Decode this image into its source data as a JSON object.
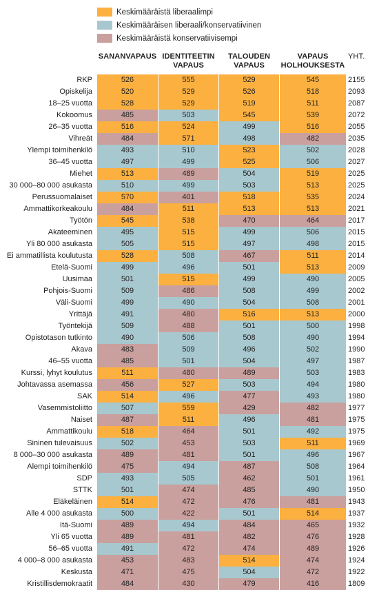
{
  "legend": [
    {
      "label": "Keskimääräistä liberaalimpi",
      "color": "#fbb040"
    },
    {
      "label": "Keskimääräisen liberaali/konservatiivinen",
      "color": "#a8c8cf"
    },
    {
      "label": "Keskimääräistä konservatiivisempi",
      "color": "#c9a09e"
    }
  ],
  "columns": [
    "SANANVAPAUS",
    "IDENTITEETIN\nVAPAUS",
    "TALOUDEN\nVAPAUS",
    "VAPAUS\nHOLHOUKSESTA"
  ],
  "total_label": "YHT.",
  "chart_data": {
    "type": "table",
    "color_key": {
      "L": "Keskimääräistä liberaalimpi",
      "N": "Keskimääräisen liberaali/konservatiivinen",
      "K": "Keskimääräistä konservatiivisempi"
    },
    "rows": [
      {
        "label": "RKP",
        "values": [
          526,
          555,
          529,
          545
        ],
        "cats": [
          "L",
          "L",
          "L",
          "L"
        ],
        "total": 2155
      },
      {
        "label": "Opiskelija",
        "values": [
          520,
          529,
          526,
          518
        ],
        "cats": [
          "L",
          "L",
          "L",
          "L"
        ],
        "total": 2093
      },
      {
        "label": "18–25 vuotta",
        "values": [
          528,
          529,
          519,
          511
        ],
        "cats": [
          "L",
          "L",
          "L",
          "L"
        ],
        "total": 2087
      },
      {
        "label": "Kokoomus",
        "values": [
          485,
          503,
          545,
          539
        ],
        "cats": [
          "K",
          "N",
          "L",
          "L"
        ],
        "total": 2072
      },
      {
        "label": "26–35 vuotta",
        "values": [
          516,
          524,
          499,
          516
        ],
        "cats": [
          "L",
          "L",
          "N",
          "L"
        ],
        "total": 2055
      },
      {
        "label": "Vihreät",
        "values": [
          484,
          571,
          498,
          482
        ],
        "cats": [
          "K",
          "L",
          "N",
          "K"
        ],
        "total": 2035
      },
      {
        "label": "Ylempi toimihenkilö",
        "values": [
          493,
          510,
          523,
          502
        ],
        "cats": [
          "N",
          "N",
          "L",
          "N"
        ],
        "total": 2028
      },
      {
        "label": "36–45 vuotta",
        "values": [
          497,
          499,
          525,
          506
        ],
        "cats": [
          "N",
          "N",
          "L",
          "N"
        ],
        "total": 2027
      },
      {
        "label": "Miehet",
        "values": [
          513,
          489,
          504,
          519
        ],
        "cats": [
          "L",
          "K",
          "N",
          "L"
        ],
        "total": 2025
      },
      {
        "label": "30 000–80 000 asukasta",
        "values": [
          510,
          499,
          503,
          513
        ],
        "cats": [
          "N",
          "N",
          "N",
          "L"
        ],
        "total": 2025
      },
      {
        "label": "Perussuomalaiset",
        "values": [
          570,
          401,
          518,
          535
        ],
        "cats": [
          "L",
          "K",
          "L",
          "L"
        ],
        "total": 2024
      },
      {
        "label": "Ammattikorkeakoulu",
        "values": [
          484,
          511,
          513,
          513
        ],
        "cats": [
          "K",
          "L",
          "L",
          "L"
        ],
        "total": 2021
      },
      {
        "label": "Työtön",
        "values": [
          545,
          538,
          470,
          464
        ],
        "cats": [
          "L",
          "L",
          "K",
          "K"
        ],
        "total": 2017
      },
      {
        "label": "Akateeminen",
        "values": [
          495,
          515,
          499,
          506
        ],
        "cats": [
          "N",
          "L",
          "N",
          "N"
        ],
        "total": 2015
      },
      {
        "label": "Yli 80 000 asukasta",
        "values": [
          505,
          515,
          497,
          498
        ],
        "cats": [
          "N",
          "L",
          "N",
          "N"
        ],
        "total": 2015
      },
      {
        "label": "Ei ammatillista koulutusta",
        "values": [
          528,
          508,
          467,
          511
        ],
        "cats": [
          "L",
          "N",
          "K",
          "L"
        ],
        "total": 2014
      },
      {
        "label": "Etelä-Suomi",
        "values": [
          499,
          496,
          501,
          513
        ],
        "cats": [
          "N",
          "N",
          "N",
          "L"
        ],
        "total": 2009
      },
      {
        "label": "Uusimaa",
        "values": [
          501,
          515,
          499,
          490
        ],
        "cats": [
          "N",
          "L",
          "N",
          "N"
        ],
        "total": 2005
      },
      {
        "label": "Pohjois-Suomi",
        "values": [
          509,
          486,
          508,
          499
        ],
        "cats": [
          "N",
          "K",
          "N",
          "N"
        ],
        "total": 2002
      },
      {
        "label": "Väli-Suomi",
        "values": [
          499,
          490,
          504,
          508
        ],
        "cats": [
          "N",
          "N",
          "N",
          "N"
        ],
        "total": 2001
      },
      {
        "label": "Yrittäjä",
        "values": [
          491,
          480,
          516,
          513
        ],
        "cats": [
          "N",
          "K",
          "L",
          "L"
        ],
        "total": 2000
      },
      {
        "label": "Työntekijä",
        "values": [
          509,
          488,
          501,
          500
        ],
        "cats": [
          "N",
          "K",
          "N",
          "N"
        ],
        "total": 1998
      },
      {
        "label": "Opistotason tutkinto",
        "values": [
          490,
          506,
          508,
          490
        ],
        "cats": [
          "N",
          "N",
          "N",
          "N"
        ],
        "total": 1994
      },
      {
        "label": "Akava",
        "values": [
          483,
          509,
          496,
          502
        ],
        "cats": [
          "K",
          "N",
          "N",
          "N"
        ],
        "total": 1990
      },
      {
        "label": "46–55 vuotta",
        "values": [
          485,
          501,
          504,
          497
        ],
        "cats": [
          "K",
          "N",
          "N",
          "N"
        ],
        "total": 1987
      },
      {
        "label": "Kurssi, lyhyt koulutus",
        "values": [
          511,
          480,
          489,
          503
        ],
        "cats": [
          "L",
          "K",
          "K",
          "N"
        ],
        "total": 1983
      },
      {
        "label": "Johtavassa asemassa",
        "values": [
          456,
          527,
          503,
          494
        ],
        "cats": [
          "K",
          "L",
          "N",
          "N"
        ],
        "total": 1980
      },
      {
        "label": "SAK",
        "values": [
          514,
          496,
          477,
          493
        ],
        "cats": [
          "L",
          "N",
          "K",
          "N"
        ],
        "total": 1980
      },
      {
        "label": "Vasemmistoliitto",
        "values": [
          507,
          559,
          429,
          482
        ],
        "cats": [
          "N",
          "L",
          "K",
          "K"
        ],
        "total": 1977
      },
      {
        "label": "Naiset",
        "values": [
          487,
          511,
          496,
          481
        ],
        "cats": [
          "K",
          "L",
          "N",
          "K"
        ],
        "total": 1975
      },
      {
        "label": "Ammattikoulu",
        "values": [
          518,
          464,
          501,
          492
        ],
        "cats": [
          "L",
          "K",
          "N",
          "N"
        ],
        "total": 1975
      },
      {
        "label": "Sininen tulevaisuus",
        "values": [
          502,
          453,
          503,
          511
        ],
        "cats": [
          "N",
          "K",
          "N",
          "L"
        ],
        "total": 1969
      },
      {
        "label": "8 000–30 000 asukasta",
        "values": [
          489,
          481,
          501,
          496
        ],
        "cats": [
          "K",
          "K",
          "N",
          "N"
        ],
        "total": 1967
      },
      {
        "label": "Alempi toimihenkilö",
        "values": [
          475,
          494,
          487,
          508
        ],
        "cats": [
          "K",
          "N",
          "K",
          "N"
        ],
        "total": 1964
      },
      {
        "label": "SDP",
        "values": [
          493,
          505,
          462,
          501
        ],
        "cats": [
          "N",
          "N",
          "K",
          "N"
        ],
        "total": 1961
      },
      {
        "label": "STTK",
        "values": [
          501,
          474,
          485,
          490
        ],
        "cats": [
          "N",
          "K",
          "K",
          "N"
        ],
        "total": 1950
      },
      {
        "label": "Eläkeläinen",
        "values": [
          514,
          472,
          476,
          481
        ],
        "cats": [
          "L",
          "K",
          "K",
          "K"
        ],
        "total": 1943
      },
      {
        "label": "Alle 4 000 asukasta",
        "values": [
          500,
          422,
          501,
          514
        ],
        "cats": [
          "N",
          "K",
          "N",
          "L"
        ],
        "total": 1937
      },
      {
        "label": "Itä-Suomi",
        "values": [
          489,
          494,
          484,
          465
        ],
        "cats": [
          "K",
          "N",
          "K",
          "K"
        ],
        "total": 1932
      },
      {
        "label": "Yli 65 vuotta",
        "values": [
          489,
          481,
          482,
          476
        ],
        "cats": [
          "K",
          "K",
          "K",
          "K"
        ],
        "total": 1928
      },
      {
        "label": "56–65 vuotta",
        "values": [
          491,
          472,
          474,
          489
        ],
        "cats": [
          "N",
          "K",
          "K",
          "K"
        ],
        "total": 1926
      },
      {
        "label": "4 000–8 000 asukasta",
        "values": [
          453,
          483,
          514,
          474
        ],
        "cats": [
          "K",
          "K",
          "L",
          "K"
        ],
        "total": 1924
      },
      {
        "label": "Keskusta",
        "values": [
          471,
          475,
          504,
          472
        ],
        "cats": [
          "K",
          "K",
          "N",
          "K"
        ],
        "total": 1922
      },
      {
        "label": "Kristillisdemokraatit",
        "values": [
          484,
          430,
          479,
          416
        ],
        "cats": [
          "K",
          "K",
          "K",
          "K"
        ],
        "total": 1809
      }
    ]
  }
}
